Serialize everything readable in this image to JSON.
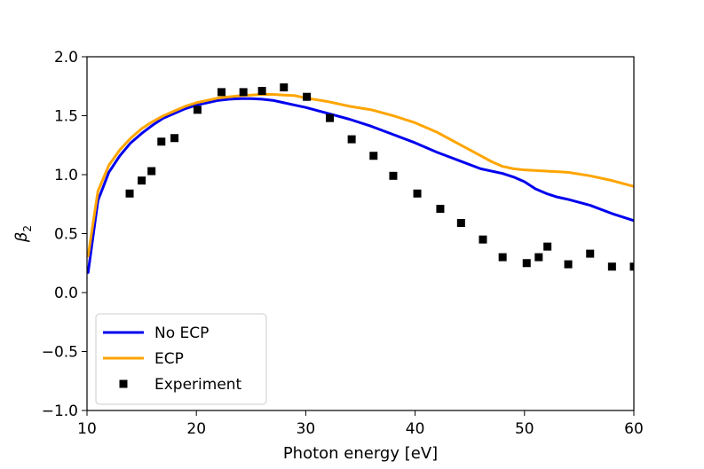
{
  "chart_data": {
    "type": "line",
    "title": "",
    "xlabel": "Photon energy [eV]",
    "ylabel_main": "β",
    "ylabel_sub": "2",
    "xlim": [
      10,
      60
    ],
    "ylim": [
      -1.0,
      2.0
    ],
    "xticks": [
      10,
      20,
      30,
      40,
      50,
      60
    ],
    "xtick_labels": [
      "10",
      "20",
      "30",
      "40",
      "50",
      "60"
    ],
    "yticks": [
      -1.0,
      -0.5,
      0.0,
      0.5,
      1.0,
      1.5,
      2.0
    ],
    "ytick_labels": [
      "−1.0",
      "−0.5",
      "0.0",
      "0.5",
      "1.0",
      "1.5",
      "2.0"
    ],
    "grid": false,
    "legend_position": "lower-left",
    "series": [
      {
        "name": "No ECP",
        "style": "line",
        "color": "#0000ee",
        "x": [
          10.1,
          11,
          12,
          13,
          14,
          15,
          16,
          17,
          18,
          19,
          20,
          21,
          22,
          23,
          24,
          25,
          26,
          27,
          28,
          29,
          30,
          32,
          34,
          36,
          38,
          40,
          42,
          44,
          46,
          48,
          49,
          50,
          51,
          52,
          53,
          54,
          56,
          58,
          60
        ],
        "y": [
          0.17,
          0.78,
          1.02,
          1.16,
          1.27,
          1.35,
          1.42,
          1.48,
          1.52,
          1.56,
          1.59,
          1.61,
          1.63,
          1.64,
          1.645,
          1.645,
          1.64,
          1.63,
          1.61,
          1.59,
          1.57,
          1.52,
          1.47,
          1.41,
          1.34,
          1.27,
          1.19,
          1.12,
          1.05,
          1.01,
          0.98,
          0.94,
          0.88,
          0.84,
          0.81,
          0.79,
          0.74,
          0.67,
          0.61
        ]
      },
      {
        "name": "ECP",
        "style": "line",
        "color": "#ffa500",
        "x": [
          10.1,
          11,
          12,
          13,
          14,
          15,
          16,
          17,
          18,
          19,
          20,
          21,
          22,
          23,
          24,
          25,
          26,
          27,
          28,
          29,
          30,
          32,
          34,
          36,
          38,
          40,
          42,
          44,
          46,
          47,
          48,
          49,
          50,
          52,
          54,
          56,
          58,
          60
        ],
        "y": [
          0.31,
          0.86,
          1.08,
          1.21,
          1.31,
          1.39,
          1.45,
          1.5,
          1.54,
          1.58,
          1.61,
          1.63,
          1.65,
          1.66,
          1.67,
          1.675,
          1.68,
          1.68,
          1.675,
          1.67,
          1.65,
          1.62,
          1.58,
          1.55,
          1.5,
          1.44,
          1.36,
          1.26,
          1.16,
          1.11,
          1.07,
          1.05,
          1.04,
          1.03,
          1.02,
          0.99,
          0.95,
          0.9
        ]
      },
      {
        "name": "Experiment",
        "style": "markers",
        "color": "#000000",
        "x": [
          13.9,
          15.0,
          15.9,
          16.8,
          18.0,
          20.1,
          22.3,
          24.3,
          26.0,
          28.0,
          30.1,
          32.2,
          34.2,
          36.2,
          38.0,
          40.2,
          42.3,
          44.2,
          46.2,
          48.0,
          50.2,
          51.3,
          52.1,
          54.0,
          56.0,
          58.0,
          60.0
        ],
        "y": [
          0.84,
          0.95,
          1.03,
          1.28,
          1.31,
          1.55,
          1.7,
          1.7,
          1.71,
          1.74,
          1.66,
          1.48,
          1.3,
          1.16,
          0.99,
          0.84,
          0.71,
          0.59,
          0.45,
          0.3,
          0.25,
          0.3,
          0.39,
          0.24,
          0.33,
          0.22,
          0.22
        ]
      }
    ]
  }
}
